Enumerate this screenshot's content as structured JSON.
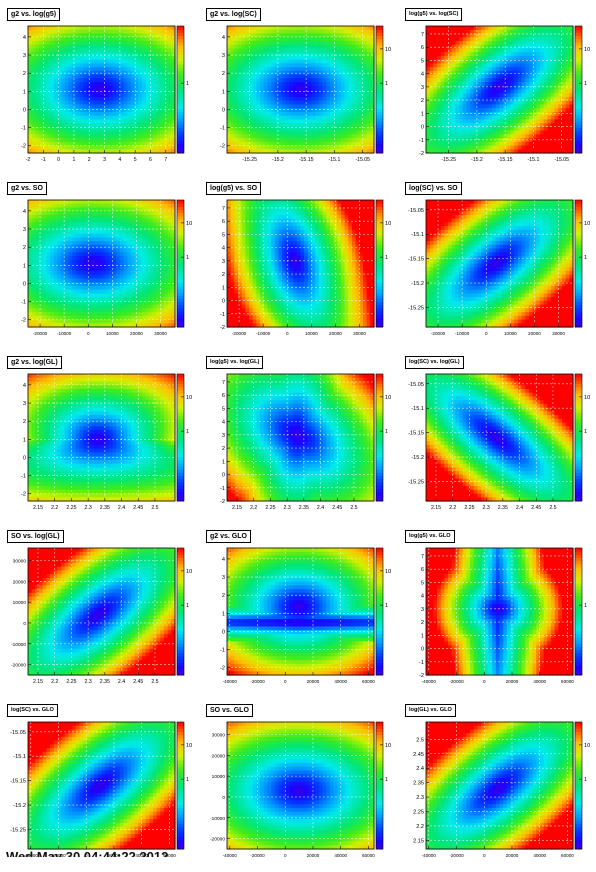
{
  "figure": {
    "footer_text": "Wed May 30 04:44:22 2012"
  },
  "chart_data": [
    {
      "type": "heatmap",
      "title": "g2 vs. log(g5)",
      "x_ticks": [
        -2,
        -1,
        0,
        1,
        2,
        3,
        4,
        5,
        6,
        7
      ],
      "x_range": [
        -2,
        7.6
      ],
      "y_ticks": [
        -2,
        -1,
        0,
        1,
        2,
        3,
        4
      ],
      "y_range": [
        -2.4,
        4.6
      ],
      "color_scale": "log",
      "z_ticks": [
        1
      ],
      "minimum": {
        "x": 2.7,
        "y": 1.1
      },
      "contour_shape": "ellipse",
      "bands": "horizontal"
    },
    {
      "type": "heatmap",
      "title": "g2 vs. log(SC)",
      "x_ticks": [
        -15.25,
        -15.2,
        -15.15,
        -15.1,
        -15.05
      ],
      "x_range": [
        -15.29,
        -15.03
      ],
      "y_ticks": [
        -2,
        -1,
        0,
        1,
        2,
        3,
        4
      ],
      "y_range": [
        -2.4,
        4.6
      ],
      "color_scale": "log",
      "z_ticks": [
        1,
        10
      ],
      "minimum": {
        "x": -15.16,
        "y": 1.1
      },
      "contour_shape": "ellipse"
    },
    {
      "type": "heatmap",
      "title": "log(g5) vs. log(SC)",
      "x_ticks": [
        -15.25,
        -15.2,
        -15.15,
        -15.1,
        -15.05
      ],
      "x_range": [
        -15.29,
        -15.03
      ],
      "y_ticks": [
        -2,
        -1,
        0,
        1,
        2,
        3,
        4,
        5,
        6,
        7
      ],
      "y_range": [
        -2,
        7.6
      ],
      "color_scale": "log",
      "z_ticks": [
        1,
        10
      ],
      "minimum": {
        "x": -15.16,
        "y": 3.0
      },
      "contour_shape": "tilted-positive"
    },
    {
      "type": "heatmap",
      "title": "g2 vs. SO",
      "x_ticks": [
        -20000,
        -10000,
        0,
        10000,
        20000,
        30000
      ],
      "x_range": [
        -25000,
        36000
      ],
      "y_ticks": [
        -2,
        -1,
        0,
        1,
        2,
        3,
        4
      ],
      "y_range": [
        -2.4,
        4.6
      ],
      "color_scale": "log",
      "z_ticks": [
        1,
        10
      ],
      "minimum": {
        "x": 2000,
        "y": 1.1
      },
      "contour_shape": "ellipse"
    },
    {
      "type": "heatmap",
      "title": "log(g5) vs. SO",
      "x_ticks": [
        -20000,
        -10000,
        0,
        10000,
        20000,
        30000
      ],
      "x_range": [
        -25000,
        36000
      ],
      "y_ticks": [
        -2,
        -1,
        0,
        1,
        2,
        3,
        4,
        5,
        6,
        7
      ],
      "y_range": [
        -2,
        7.6
      ],
      "color_scale": "log",
      "z_ticks": [
        1,
        10
      ],
      "minimum": {
        "x": 3000,
        "y": 3.0
      },
      "contour_shape": "s-band"
    },
    {
      "type": "heatmap",
      "title": "log(SC) vs. SO",
      "x_ticks": [
        -20000,
        -10000,
        0,
        10000,
        20000,
        30000
      ],
      "x_range": [
        -25000,
        36000
      ],
      "y_ticks": [
        -15.25,
        -15.2,
        -15.15,
        -15.1,
        -15.05
      ],
      "y_range": [
        -15.29,
        -15.03
      ],
      "color_scale": "log",
      "z_ticks": [
        1,
        10
      ],
      "minimum": {
        "x": 4000,
        "y": -15.16
      },
      "contour_shape": "tilted-positive"
    },
    {
      "type": "heatmap",
      "title": "g2 vs. log(GL)",
      "x_ticks": [
        2.15,
        2.2,
        2.25,
        2.3,
        2.35,
        2.4,
        2.45,
        2.5
      ],
      "x_range": [
        2.12,
        2.56
      ],
      "y_ticks": [
        -2,
        -1,
        0,
        1,
        2,
        3,
        4
      ],
      "y_range": [
        -2.4,
        4.6
      ],
      "color_scale": "log",
      "z_ticks": [
        1,
        10
      ],
      "minimum": {
        "x": 2.33,
        "y": 1.0
      },
      "contour_shape": "triangle"
    },
    {
      "type": "heatmap",
      "title": "log(g5) vs. log(GL)",
      "x_ticks": [
        2.15,
        2.2,
        2.25,
        2.3,
        2.35,
        2.4,
        2.45,
        2.5
      ],
      "x_range": [
        2.12,
        2.56
      ],
      "y_ticks": [
        -2,
        -1,
        0,
        1,
        2,
        3,
        4,
        5,
        6,
        7
      ],
      "y_range": [
        -2,
        7.6
      ],
      "color_scale": "log",
      "z_ticks": [
        1,
        10
      ],
      "minimum": {
        "x": 2.33,
        "y": 3.0
      },
      "contour_shape": "cross-band"
    },
    {
      "type": "heatmap",
      "title": "log(SC) vs. log(GL)",
      "x_ticks": [
        2.15,
        2.2,
        2.25,
        2.3,
        2.35,
        2.4,
        2.45,
        2.5
      ],
      "x_range": [
        2.12,
        2.56
      ],
      "y_ticks": [
        -15.25,
        -15.2,
        -15.15,
        -15.1,
        -15.05
      ],
      "y_range": [
        -15.29,
        -15.03
      ],
      "color_scale": "log",
      "z_ticks": [
        1,
        10
      ],
      "minimum": {
        "x": 2.33,
        "y": -15.16
      },
      "contour_shape": "tilted-negative"
    },
    {
      "type": "heatmap",
      "title": "SO vs. log(GL)",
      "x_ticks": [
        2.15,
        2.2,
        2.25,
        2.3,
        2.35,
        2.4,
        2.45,
        2.5
      ],
      "x_range": [
        2.12,
        2.56
      ],
      "y_ticks": [
        -20000,
        -10000,
        0,
        10000,
        20000,
        30000
      ],
      "y_range": [
        -25000,
        36000
      ],
      "color_scale": "log",
      "z_ticks": [
        1,
        10
      ],
      "minimum": {
        "x": 2.33,
        "y": 4000
      },
      "contour_shape": "tilted-positive"
    },
    {
      "type": "heatmap",
      "title": "g2 vs. GLO",
      "x_ticks": [
        -40000,
        -20000,
        0,
        20000,
        40000,
        60000
      ],
      "x_range": [
        -42000,
        64000
      ],
      "y_ticks": [
        -2,
        -1,
        0,
        1,
        2,
        3,
        4
      ],
      "y_range": [
        -2.4,
        4.6
      ],
      "color_scale": "log",
      "z_ticks": [
        1,
        10
      ],
      "minimum": {
        "x": 10000,
        "y": 0.5
      },
      "contour_shape": "horizontal-band"
    },
    {
      "type": "heatmap",
      "title": "log(g5) vs. GLO",
      "x_ticks": [
        -40000,
        -20000,
        0,
        20000,
        40000,
        60000
      ],
      "x_range": [
        -42000,
        64000
      ],
      "y_ticks": [
        -2,
        -1,
        0,
        1,
        2,
        3,
        4,
        5,
        6,
        7
      ],
      "y_range": [
        -2,
        7.6
      ],
      "color_scale": "log",
      "z_ticks": [
        1
      ],
      "minimum": {
        "x": 10000,
        "y": 3.0
      },
      "contour_shape": "vertical-band"
    },
    {
      "type": "heatmap",
      "title": "log(SC) vs. GLO",
      "x_ticks": [
        -40000,
        -20000,
        0,
        20000,
        40000,
        60000
      ],
      "x_range": [
        -42000,
        64000
      ],
      "y_ticks": [
        -15.25,
        -15.2,
        -15.15,
        -15.1,
        -15.05
      ],
      "y_range": [
        -15.29,
        -15.03
      ],
      "color_scale": "log",
      "z_ticks": [
        1,
        10
      ],
      "minimum": {
        "x": 10000,
        "y": -15.16
      },
      "contour_shape": "tilted-positive"
    },
    {
      "type": "heatmap",
      "title": "SO vs. GLO",
      "x_ticks": [
        -40000,
        -20000,
        0,
        20000,
        40000,
        60000
      ],
      "x_range": [
        -42000,
        64000
      ],
      "y_ticks": [
        -20000,
        -10000,
        0,
        10000,
        20000,
        30000
      ],
      "y_range": [
        -25000,
        36000
      ],
      "color_scale": "log",
      "z_ticks": [
        1,
        10
      ],
      "minimum": {
        "x": 10000,
        "y": 3000
      },
      "contour_shape": "ellipse"
    },
    {
      "type": "heatmap",
      "title": "log(GL) vs. GLO",
      "x_ticks": [
        -40000,
        -20000,
        0,
        20000,
        40000,
        60000
      ],
      "x_range": [
        -42000,
        64000
      ],
      "y_ticks": [
        2.15,
        2.2,
        2.25,
        2.3,
        2.35,
        2.4,
        2.45,
        2.5
      ],
      "y_range": [
        2.12,
        2.56
      ],
      "color_scale": "log",
      "z_ticks": [
        1,
        10
      ],
      "minimum": {
        "x": 10000,
        "y": 2.33
      },
      "contour_shape": "tilted-positive"
    }
  ]
}
